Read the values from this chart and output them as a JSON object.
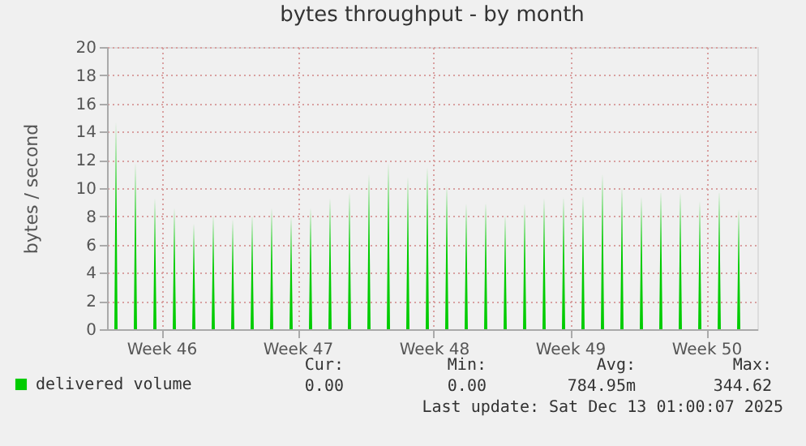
{
  "chart_data": {
    "type": "area",
    "title": "bytes throughput - by month",
    "ylabel": "bytes / second",
    "x": [
      "2025-11-10T00:00",
      "2025-11-10T02:00",
      "2025-11-10T04:00",
      "2025-11-11T00:00",
      "2025-11-11T02:00",
      "2025-11-11T04:00",
      "2025-11-12T00:00",
      "2025-11-12T02:00",
      "2025-11-12T04:00",
      "2025-11-13T00:00",
      "2025-11-13T02:00",
      "2025-11-13T04:00",
      "2025-11-14T00:00",
      "2025-11-14T02:00",
      "2025-11-14T04:00",
      "2025-11-15T00:00",
      "2025-11-15T02:00",
      "2025-11-15T04:00",
      "2025-11-16T00:00",
      "2025-11-16T02:00",
      "2025-11-16T04:00",
      "2025-11-17T00:00",
      "2025-11-17T02:00",
      "2025-11-17T04:00",
      "2025-11-18T00:00",
      "2025-11-18T02:00",
      "2025-11-18T04:00",
      "2025-11-19T00:00",
      "2025-11-19T02:00",
      "2025-11-19T04:00",
      "2025-11-20T00:00",
      "2025-11-20T02:00",
      "2025-11-20T04:00",
      "2025-11-21T00:00",
      "2025-11-21T02:00",
      "2025-11-21T04:00",
      "2025-11-22T00:00",
      "2025-11-22T02:00",
      "2025-11-22T04:00",
      "2025-11-23T00:00",
      "2025-11-23T02:00",
      "2025-11-23T04:00",
      "2025-11-24T00:00",
      "2025-11-24T02:00",
      "2025-11-24T04:00",
      "2025-11-25T00:00",
      "2025-11-25T02:00",
      "2025-11-25T04:00",
      "2025-11-26T00:00",
      "2025-11-26T02:00",
      "2025-11-26T04:00",
      "2025-11-27T00:00",
      "2025-11-27T02:00",
      "2025-11-27T04:00",
      "2025-11-28T00:00",
      "2025-11-28T02:00",
      "2025-11-28T04:00",
      "2025-11-29T00:00",
      "2025-11-29T02:00",
      "2025-11-29T04:00",
      "2025-11-30T00:00",
      "2025-11-30T02:00",
      "2025-11-30T04:00",
      "2025-12-01T00:00",
      "2025-12-01T02:00",
      "2025-12-01T04:00",
      "2025-12-02T00:00",
      "2025-12-02T02:00",
      "2025-12-02T04:00",
      "2025-12-03T00:00",
      "2025-12-03T02:00",
      "2025-12-03T04:00",
      "2025-12-04T00:00",
      "2025-12-04T02:00",
      "2025-12-04T04:00",
      "2025-12-05T00:00",
      "2025-12-05T02:00",
      "2025-12-05T04:00",
      "2025-12-06T00:00",
      "2025-12-06T02:00",
      "2025-12-06T04:00",
      "2025-12-07T00:00",
      "2025-12-07T02:00",
      "2025-12-07T04:00",
      "2025-12-08T00:00",
      "2025-12-08T02:00",
      "2025-12-08T04:00",
      "2025-12-09T00:00",
      "2025-12-09T02:00",
      "2025-12-09T04:00",
      "2025-12-10T00:00",
      "2025-12-10T02:00",
      "2025-12-10T04:00",
      "2025-12-11T00:00",
      "2025-12-11T02:00",
      "2025-12-11T04:00",
      "2025-12-12T00:00",
      "2025-12-12T02:00",
      "2025-12-12T04:00"
    ],
    "series": [
      {
        "name": "delivered volume",
        "color": "#00cc00",
        "values": [
          0,
          14.7,
          0,
          0,
          11.8,
          0,
          0,
          9.3,
          0,
          0,
          8.6,
          0,
          0,
          7.5,
          0,
          0,
          8.1,
          0,
          0,
          7.8,
          0,
          0,
          8.1,
          0,
          0,
          8.6,
          0,
          0,
          8.0,
          0,
          0,
          8.6,
          0,
          0,
          9.3,
          0,
          0,
          9.7,
          0,
          0,
          11.0,
          0,
          0,
          11.8,
          0,
          0,
          10.8,
          0,
          0,
          11.5,
          0,
          0,
          10.2,
          0,
          0,
          8.9,
          0,
          0,
          9.0,
          0,
          0,
          8.1,
          0,
          0,
          8.9,
          0,
          0,
          9.3,
          0,
          0,
          9.4,
          0,
          0,
          9.5,
          0,
          0,
          11.0,
          0,
          0,
          10.1,
          0,
          0,
          9.4,
          0,
          0,
          9.8,
          0,
          0,
          9.7,
          0,
          0,
          9.1,
          0,
          0,
          9.8,
          0,
          0,
          8.5,
          0
        ]
      }
    ],
    "xlim": [
      "2025-11-09T15:00",
      "2025-12-13T01:00"
    ],
    "xticks": [
      {
        "value": "2025-11-12T10:00",
        "label": "Week 46"
      },
      {
        "value": "2025-11-19T10:00",
        "label": "Week 47"
      },
      {
        "value": "2025-11-26T10:00",
        "label": "Week 48"
      },
      {
        "value": "2025-12-03T10:00",
        "label": "Week 49"
      },
      {
        "value": "2025-12-10T10:00",
        "label": "Week 50"
      }
    ],
    "ylim": [
      0,
      20
    ],
    "yticks": [
      0,
      2,
      4,
      6,
      8,
      10,
      12,
      14,
      16,
      18,
      20
    ],
    "grid": true,
    "legend": "bottom",
    "annotations": [
      "Cur:",
      "Min:",
      "Avg:",
      "Max:",
      "0.00",
      "0.00",
      "784.95m",
      "344.62",
      "Last update: Sat Dec 13 01:00:07 2025"
    ]
  }
}
